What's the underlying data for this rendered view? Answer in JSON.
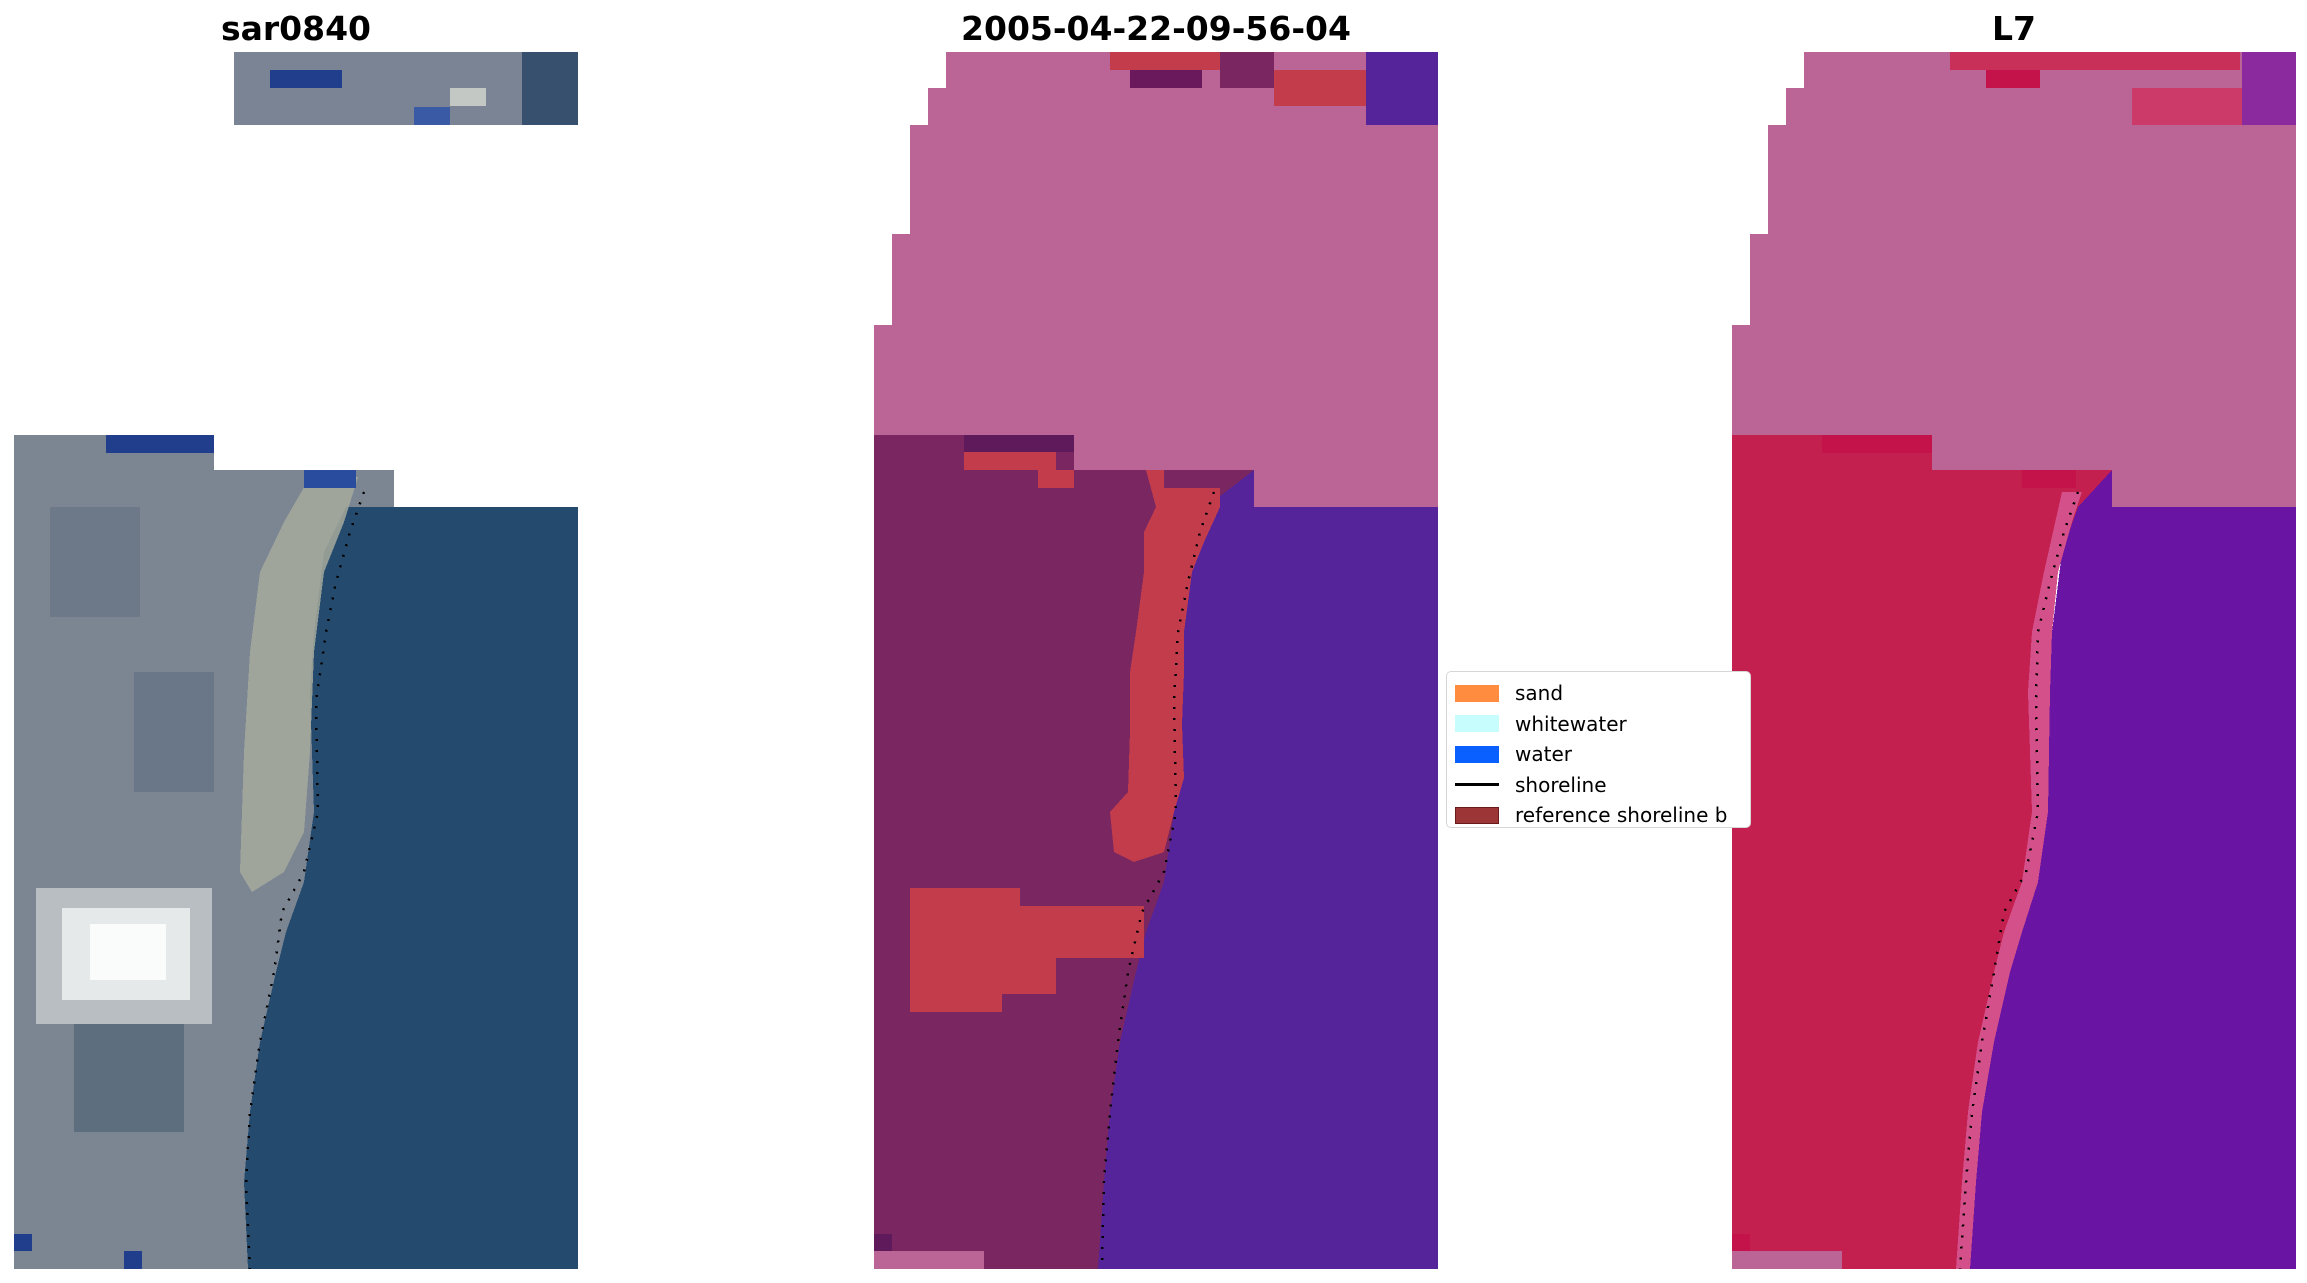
{
  "panels": [
    {
      "id": "rgb",
      "title": "sar0840"
    },
    {
      "id": "classified",
      "title": "2005-04-22-09-56-04"
    },
    {
      "id": "index",
      "title": "L7"
    }
  ],
  "legend": {
    "items": [
      {
        "label": "sand",
        "color": "#ff8c3f",
        "kind": "patch"
      },
      {
        "label": "whitewater",
        "color": "#c8fdfd",
        "kind": "patch"
      },
      {
        "label": "water",
        "color": "#0a5fff",
        "kind": "patch"
      },
      {
        "label": "shoreline",
        "color": "#000000",
        "kind": "line"
      },
      {
        "label": "reference shoreline b",
        "color": "#9c3636",
        "kind": "patch"
      }
    ]
  },
  "colors": {
    "rgb_land": "#7c8693",
    "rgb_water": "#244a6e",
    "rgb_sand": "#a6aa9c",
    "rgb_cloud": "#f0f2f2",
    "rgb_blue": "#203e8c",
    "class_land": "#7a2660",
    "class_water": "#55239a",
    "class_sand": "#c33c4c",
    "class_top": "#bb6597",
    "index_land": "#c4204f",
    "index_water": "#6a14a4",
    "index_top": "#bb6597",
    "index_beach": "#d4508a",
    "shoreline": "#000000"
  }
}
